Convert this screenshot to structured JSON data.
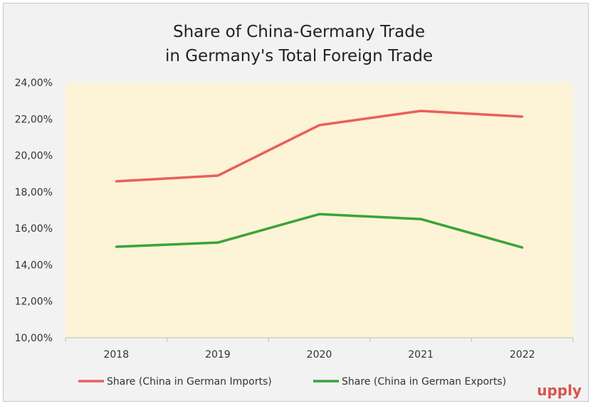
{
  "chart_data": {
    "type": "line",
    "title_lines": [
      "Share of China-Germany Trade",
      "in Germany's Total Foreign Trade"
    ],
    "categories": [
      "2018",
      "2019",
      "2020",
      "2021",
      "2022"
    ],
    "series": [
      {
        "name": "Share (China in German Imports)",
        "color": "#e8605c",
        "values": [
          18.58,
          18.89,
          21.66,
          22.44,
          22.13
        ]
      },
      {
        "name": "Share (China in German Exports)",
        "color": "#3aa33a",
        "values": [
          14.99,
          15.22,
          16.78,
          16.51,
          14.95
        ]
      }
    ],
    "ylim": [
      10,
      24
    ],
    "yticks": [
      "10,00%",
      "12,00%",
      "14,00%",
      "16,00%",
      "18,00%",
      "20,00%",
      "22,00%",
      "24,00%"
    ],
    "plot_background": "#fdf3d6",
    "legend_position": "bottom",
    "xlabel": "",
    "ylabel": ""
  },
  "logo": {
    "text": "upply",
    "color": "#d9534f"
  }
}
